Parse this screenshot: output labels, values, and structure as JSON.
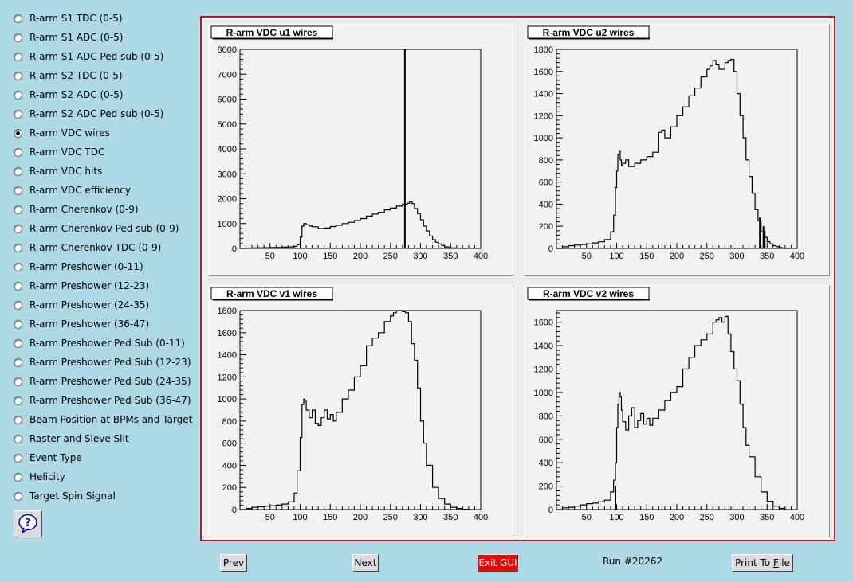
{
  "sidebar": {
    "items": [
      {
        "label": "R-arm S1 TDC (0-5)",
        "selected": false
      },
      {
        "label": "R-arm S1 ADC (0-5)",
        "selected": false
      },
      {
        "label": "R-arm S1 ADC Ped sub (0-5)",
        "selected": false
      },
      {
        "label": "R-arm S2 TDC (0-5)",
        "selected": false
      },
      {
        "label": "R-arm S2 ADC (0-5)",
        "selected": false
      },
      {
        "label": "R-arm S2 ADC Ped sub (0-5)",
        "selected": false
      },
      {
        "label": "R-arm VDC wires",
        "selected": true
      },
      {
        "label": "R-arm VDC TDC",
        "selected": false
      },
      {
        "label": "R-arm VDC hits",
        "selected": false
      },
      {
        "label": "R-arm VDC efficiency",
        "selected": false
      },
      {
        "label": "R-arm Cherenkov (0-9)",
        "selected": false
      },
      {
        "label": "R-arm Cherenkov Ped sub (0-9)",
        "selected": false
      },
      {
        "label": "R-arm Cherenkov TDC (0-9)",
        "selected": false
      },
      {
        "label": "R-arm Preshower (0-11)",
        "selected": false
      },
      {
        "label": "R-arm Preshower (12-23)",
        "selected": false
      },
      {
        "label": "R-arm Preshower (24-35)",
        "selected": false
      },
      {
        "label": "R-arm Preshower (36-47)",
        "selected": false
      },
      {
        "label": "R-arm Preshower Ped Sub (0-11)",
        "selected": false
      },
      {
        "label": "R-arm Preshower Ped Sub (12-23)",
        "selected": false
      },
      {
        "label": "R-arm Preshower Ped Sub (24-35)",
        "selected": false
      },
      {
        "label": "R-arm Preshower Ped Sub (36-47)",
        "selected": false
      },
      {
        "label": "Beam Position at BPMs and Target",
        "selected": false
      },
      {
        "label": "Raster and Sieve Slit",
        "selected": false
      },
      {
        "label": "Event Type",
        "selected": false
      },
      {
        "label": "Helicity",
        "selected": false
      },
      {
        "label": "Target Spin Signal",
        "selected": false
      }
    ],
    "help_icon": "question-bubble-icon"
  },
  "buttons": {
    "prev": "Prev",
    "next": "Next",
    "exit": "Exit GUI",
    "print_pre": "Print To ",
    "print_key": "F",
    "print_post": "ile"
  },
  "run_label": "Run #20262",
  "colors": {
    "background": "#add8e6",
    "canvas_border": "#c8141a",
    "exit_button": "#ff0000"
  },
  "chart_data": [
    {
      "type": "histogram",
      "title": "R-arm VDC u1 wires",
      "xlim": [
        0,
        400
      ],
      "ylim": [
        0,
        8000
      ],
      "xticks": [
        50,
        100,
        150,
        200,
        250,
        300,
        350,
        400
      ],
      "yticks": [
        0,
        1000,
        2000,
        3000,
        4000,
        5000,
        6000,
        7000,
        8000
      ],
      "x": [
        0,
        10,
        20,
        30,
        40,
        50,
        60,
        70,
        80,
        90,
        95,
        100,
        103,
        106,
        110,
        115,
        120,
        130,
        140,
        150,
        160,
        170,
        180,
        190,
        200,
        210,
        220,
        230,
        240,
        250,
        260,
        270,
        274,
        278,
        282,
        286,
        290,
        295,
        300,
        305,
        310,
        315,
        320,
        325,
        330,
        335,
        340,
        350,
        360,
        370
      ],
      "y": [
        0,
        10,
        20,
        25,
        30,
        35,
        40,
        50,
        60,
        80,
        150,
        450,
        900,
        1000,
        950,
        900,
        870,
        800,
        820,
        880,
        930,
        1000,
        1050,
        1120,
        1200,
        1300,
        1380,
        1450,
        1550,
        1620,
        1700,
        1780,
        1770,
        1820,
        1880,
        1800,
        1600,
        1400,
        1150,
        900,
        700,
        500,
        350,
        250,
        180,
        120,
        60,
        20,
        5,
        0
      ],
      "spikes": [
        {
          "x": 274,
          "y": 8000
        }
      ]
    },
    {
      "type": "histogram",
      "title": "R-arm VDC u2 wires",
      "xlim": [
        0,
        400
      ],
      "ylim": [
        0,
        1800
      ],
      "xticks": [
        50,
        100,
        150,
        200,
        250,
        300,
        350,
        400
      ],
      "yticks": [
        0,
        200,
        400,
        600,
        800,
        1000,
        1200,
        1400,
        1600,
        1800
      ],
      "x": [
        0,
        10,
        20,
        30,
        40,
        50,
        60,
        70,
        80,
        90,
        95,
        98,
        100,
        102,
        104,
        106,
        108,
        110,
        115,
        120,
        130,
        140,
        150,
        160,
        170,
        175,
        180,
        190,
        200,
        210,
        220,
        230,
        240,
        250,
        255,
        260,
        265,
        270,
        280,
        285,
        290,
        295,
        300,
        305,
        310,
        315,
        320,
        325,
        330,
        335,
        340,
        345,
        350,
        355,
        360,
        365,
        370,
        375,
        380
      ],
      "y": [
        0,
        15,
        25,
        30,
        35,
        40,
        50,
        60,
        80,
        150,
        300,
        550,
        700,
        850,
        880,
        800,
        750,
        770,
        800,
        740,
        770,
        800,
        830,
        870,
        1050,
        1070,
        1000,
        1100,
        1200,
        1280,
        1380,
        1450,
        1550,
        1620,
        1650,
        1700,
        1660,
        1620,
        1680,
        1700,
        1710,
        1600,
        1400,
        1200,
        1000,
        800,
        650,
        500,
        350,
        250,
        150,
        100,
        60,
        40,
        25,
        15,
        8,
        3,
        0
      ],
      "spikes": [
        {
          "x": 338,
          "y": 280
        },
        {
          "x": 344,
          "y": 200
        },
        {
          "x": 346,
          "y": 160
        }
      ]
    },
    {
      "type": "histogram",
      "title": "R-arm VDC v1 wires",
      "xlim": [
        0,
        400
      ],
      "ylim": [
        0,
        1800
      ],
      "xticks": [
        50,
        100,
        150,
        200,
        250,
        300,
        350,
        400
      ],
      "yticks": [
        0,
        200,
        400,
        600,
        800,
        1000,
        1200,
        1400,
        1600,
        1800
      ],
      "x": [
        0,
        10,
        20,
        30,
        40,
        50,
        60,
        70,
        80,
        90,
        95,
        100,
        103,
        106,
        108,
        110,
        115,
        120,
        125,
        130,
        135,
        140,
        145,
        150,
        155,
        160,
        170,
        180,
        190,
        200,
        210,
        220,
        230,
        240,
        250,
        255,
        260,
        265,
        270,
        275,
        280,
        285,
        290,
        295,
        300,
        305,
        310,
        320,
        330,
        340,
        350,
        360,
        370,
        380
      ],
      "y": [
        0,
        10,
        20,
        25,
        30,
        35,
        40,
        50,
        70,
        150,
        350,
        650,
        950,
        1000,
        980,
        900,
        830,
        900,
        780,
        760,
        830,
        900,
        820,
        860,
        800,
        880,
        1000,
        1080,
        1200,
        1300,
        1480,
        1550,
        1600,
        1700,
        1750,
        1780,
        1800,
        1820,
        1790,
        1780,
        1700,
        1500,
        1350,
        1100,
        800,
        600,
        400,
        200,
        100,
        50,
        20,
        10,
        3,
        0
      ]
    },
    {
      "type": "histogram",
      "title": "R-arm VDC v2 wires",
      "xlim": [
        0,
        400
      ],
      "ylim": [
        0,
        1700
      ],
      "xticks": [
        50,
        100,
        150,
        200,
        250,
        300,
        350,
        400
      ],
      "yticks": [
        0,
        200,
        400,
        600,
        800,
        1000,
        1200,
        1400,
        1600
      ],
      "x": [
        0,
        10,
        20,
        30,
        40,
        50,
        60,
        70,
        80,
        90,
        95,
        98,
        100,
        102,
        104,
        106,
        108,
        110,
        115,
        120,
        125,
        130,
        135,
        140,
        145,
        150,
        155,
        160,
        170,
        180,
        190,
        200,
        210,
        220,
        230,
        240,
        250,
        260,
        265,
        270,
        275,
        280,
        285,
        290,
        295,
        300,
        305,
        310,
        315,
        320,
        330,
        340,
        350,
        360,
        370,
        380
      ],
      "y": [
        0,
        15,
        20,
        30,
        40,
        50,
        55,
        65,
        80,
        150,
        250,
        400,
        700,
        900,
        1000,
        960,
        850,
        750,
        680,
        800,
        870,
        700,
        760,
        820,
        730,
        780,
        720,
        780,
        850,
        930,
        1000,
        1050,
        1200,
        1300,
        1400,
        1450,
        1500,
        1600,
        1620,
        1640,
        1600,
        1650,
        1500,
        1350,
        1200,
        1100,
        900,
        700,
        550,
        450,
        280,
        150,
        70,
        30,
        10,
        0
      ],
      "spikes": [
        {
          "x": 98,
          "y": 200
        }
      ]
    }
  ]
}
